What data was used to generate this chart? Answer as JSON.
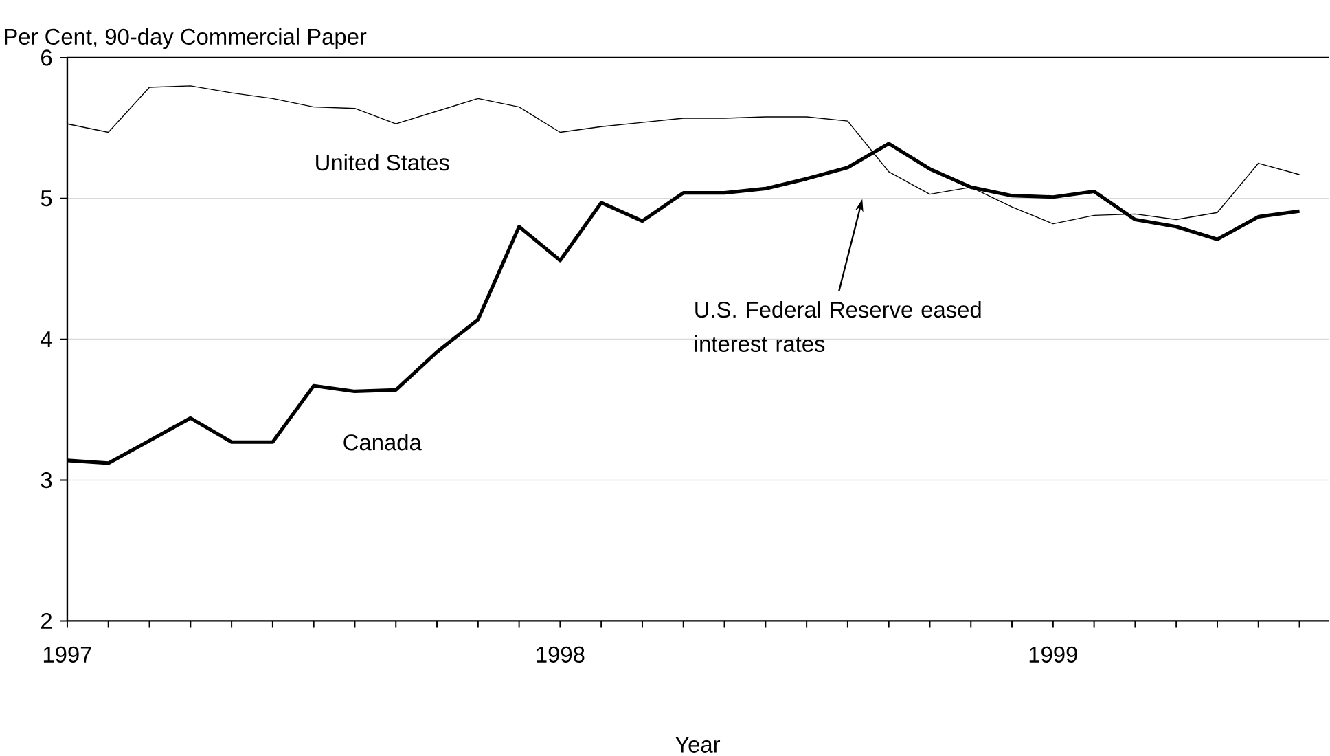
{
  "chart_data": {
    "type": "line",
    "ylabel": "Per Cent, 90-day Commercial Paper",
    "xlabel": "Year",
    "x": [
      "1997-01",
      "1997-02",
      "1997-03",
      "1997-04",
      "1997-05",
      "1997-06",
      "1997-07",
      "1997-08",
      "1997-09",
      "1997-10",
      "1997-11",
      "1997-12",
      "1998-01",
      "1998-02",
      "1998-03",
      "1998-04",
      "1998-05",
      "1998-06",
      "1998-07",
      "1998-08",
      "1998-09",
      "1998-10",
      "1998-11",
      "1998-12",
      "1999-01",
      "1999-02",
      "1999-03",
      "1999-04",
      "1999-05",
      "1999-06",
      "1999-07"
    ],
    "series": [
      {
        "name": "United States",
        "color": "#000000",
        "values": [
          5.53,
          5.47,
          5.79,
          5.8,
          5.75,
          5.71,
          5.65,
          5.64,
          5.53,
          5.62,
          5.71,
          5.65,
          5.47,
          5.51,
          5.54,
          5.57,
          5.57,
          5.58,
          5.58,
          5.55,
          5.19,
          5.03,
          5.08,
          4.94,
          4.82,
          4.88,
          4.89,
          4.85,
          4.9,
          5.25,
          5.17
        ]
      },
      {
        "name": "Canada",
        "color": "#000000",
        "values": [
          3.14,
          3.12,
          3.28,
          3.44,
          3.27,
          3.27,
          3.67,
          3.63,
          3.64,
          3.91,
          4.14,
          4.8,
          4.56,
          4.97,
          4.84,
          5.04,
          5.04,
          5.07,
          5.14,
          5.22,
          5.39,
          5.21,
          5.08,
          5.02,
          5.01,
          5.05,
          4.85,
          4.8,
          4.71,
          4.87,
          4.91
        ]
      }
    ],
    "xlim": [
      "1997-01",
      "1999-07-23"
    ],
    "xticks": [
      {
        "value": "1997-01",
        "label": "1997"
      },
      {
        "value": "1997-02",
        "label": null
      },
      {
        "value": "1997-03",
        "label": null
      },
      {
        "value": "1997-04",
        "label": null
      },
      {
        "value": "1997-05",
        "label": null
      },
      {
        "value": "1997-06",
        "label": null
      },
      {
        "value": "1997-07",
        "label": null
      },
      {
        "value": "1997-08",
        "label": null
      },
      {
        "value": "1997-09",
        "label": null
      },
      {
        "value": "1997-10",
        "label": null
      },
      {
        "value": "1997-11",
        "label": null
      },
      {
        "value": "1997-12",
        "label": null
      },
      {
        "value": "1998-01",
        "label": "1998"
      },
      {
        "value": "1998-02",
        "label": null
      },
      {
        "value": "1998-03",
        "label": null
      },
      {
        "value": "1998-04",
        "label": null
      },
      {
        "value": "1998-05",
        "label": null
      },
      {
        "value": "1998-06",
        "label": null
      },
      {
        "value": "1998-07",
        "label": null
      },
      {
        "value": "1998-08",
        "label": null
      },
      {
        "value": "1998-09",
        "label": null
      },
      {
        "value": "1998-10",
        "label": null
      },
      {
        "value": "1998-11",
        "label": null
      },
      {
        "value": "1998-12",
        "label": null
      },
      {
        "value": "1999-01",
        "label": "1999"
      },
      {
        "value": "1999-02",
        "label": null
      },
      {
        "value": "1999-03",
        "label": null
      },
      {
        "value": "1999-04",
        "label": null
      },
      {
        "value": "1999-05",
        "label": null
      },
      {
        "value": "1999-06",
        "label": null
      },
      {
        "value": "1999-07",
        "label": null
      }
    ],
    "ylim": [
      2,
      6
    ],
    "yticks": [
      2,
      3,
      4,
      5,
      6
    ],
    "grid": "y",
    "legend": false,
    "marker": "none",
    "line_style": "solid",
    "annotations": [
      "U.S. Federal Reserve eased interest rates"
    ]
  }
}
